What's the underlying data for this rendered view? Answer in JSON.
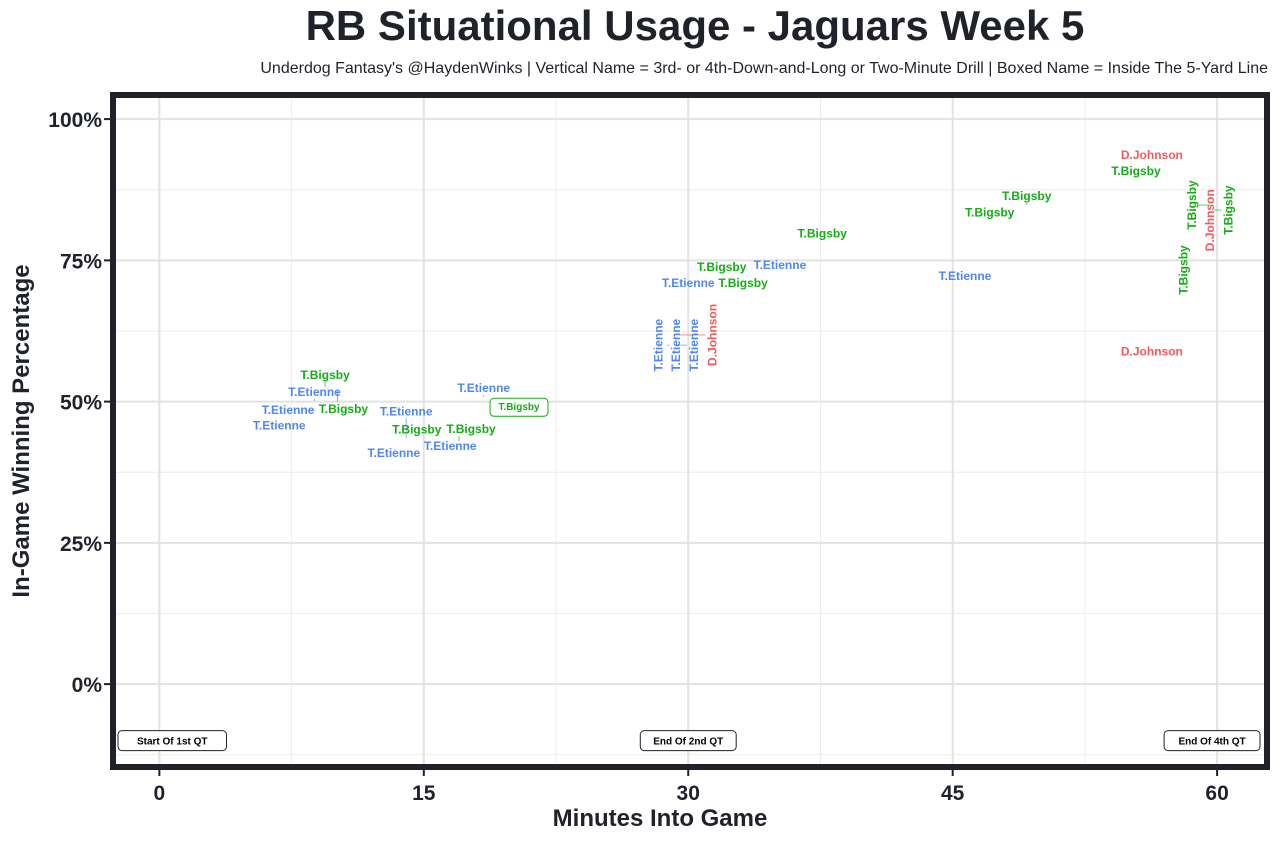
{
  "chart_data": {
    "type": "scatter",
    "title": "RB Situational Usage - Jaguars Week 5",
    "subtitle": "Underdog Fantasy's @HaydenWinks | Vertical Name = 3rd- or 4th-Down-and-Long or Two-Minute Drill | Boxed Name = Inside The 5-Yard Line",
    "xlabel": "Minutes Into Game",
    "ylabel": "In-Game Winning Percentage",
    "xlim": [
      -2.8,
      63
    ],
    "ylim": [
      -15.2,
      104.8
    ],
    "x_ticks": [
      0,
      15,
      30,
      45,
      60
    ],
    "x_tick_labels": [
      "0",
      "15",
      "30",
      "45",
      "60"
    ],
    "y_ticks": [
      0,
      25,
      50,
      75,
      100
    ],
    "y_tick_labels": [
      "0%",
      "25%",
      "50%",
      "75%",
      "100%"
    ],
    "grid": true,
    "colors": {
      "T.Etienne": "#4f86f7",
      "T.Bigsby": "#14ad14",
      "D.Johnson": "#f25a5a"
    },
    "points": [
      {
        "player": "T.Etienne",
        "x": 6.8,
        "y": 45.8,
        "vertical": false,
        "boxed": false
      },
      {
        "player": "T.Etienne",
        "x": 7.3,
        "y": 48.0,
        "vertical": false,
        "boxed": false
      },
      {
        "player": "T.Etienne",
        "x": 8.8,
        "y": 50.1,
        "vertical": false,
        "boxed": false
      },
      {
        "player": "T.Bigsby",
        "x": 9.4,
        "y": 52.6,
        "vertical": false,
        "boxed": false
      },
      {
        "player": "T.Bigsby",
        "x": 10.1,
        "y": 51.9,
        "vertical": false,
        "boxed": false
      },
      {
        "player": "T.Bigsby",
        "x": 14.6,
        "y": 45.1,
        "vertical": false,
        "boxed": false
      },
      {
        "player": "T.Etienne",
        "x": 13.3,
        "y": 40.9,
        "vertical": false,
        "boxed": false
      },
      {
        "player": "T.Etienne",
        "x": 14.0,
        "y": 43.5,
        "vertical": false,
        "boxed": false
      },
      {
        "player": "T.Etienne",
        "x": 16.5,
        "y": 42.7,
        "vertical": false,
        "boxed": false
      },
      {
        "player": "T.Bigsby",
        "x": 17.0,
        "y": 43.0,
        "vertical": false,
        "boxed": false
      },
      {
        "player": "T.Etienne",
        "x": 18.4,
        "y": 50.8,
        "vertical": false,
        "boxed": false
      },
      {
        "player": "T.Bigsby",
        "x": 20.4,
        "y": 49.0,
        "vertical": false,
        "boxed": true
      },
      {
        "player": "T.Etienne",
        "x": 28.3,
        "y": 60.0,
        "vertical": true,
        "boxed": false
      },
      {
        "player": "T.Etienne",
        "x": 28.8,
        "y": 60.0,
        "vertical": true,
        "boxed": false
      },
      {
        "player": "T.Etienne",
        "x": 29.3,
        "y": 60.0,
        "vertical": true,
        "boxed": false
      },
      {
        "player": "D.Johnson",
        "x": 29.5,
        "y": 61.8,
        "vertical": true,
        "boxed": false
      },
      {
        "player": "T.Etienne",
        "x": 30.0,
        "y": 71.0,
        "vertical": false,
        "boxed": false
      },
      {
        "player": "T.Bigsby",
        "x": 31.9,
        "y": 73.3,
        "vertical": false,
        "boxed": false
      },
      {
        "player": "T.Bigsby",
        "x": 32.6,
        "y": 71.5,
        "vertical": false,
        "boxed": false
      },
      {
        "player": "T.Etienne",
        "x": 35.2,
        "y": 74.2,
        "vertical": false,
        "boxed": false
      },
      {
        "player": "T.Bigsby",
        "x": 37.6,
        "y": 79.8,
        "vertical": false,
        "boxed": false
      },
      {
        "player": "T.Etienne",
        "x": 45.7,
        "y": 72.2,
        "vertical": false,
        "boxed": false
      },
      {
        "player": "T.Bigsby",
        "x": 47.1,
        "y": 83.5,
        "vertical": false,
        "boxed": false
      },
      {
        "player": "T.Bigsby",
        "x": 49.2,
        "y": 84.8,
        "vertical": false,
        "boxed": false
      },
      {
        "player": "T.Bigsby",
        "x": 55.4,
        "y": 90.8,
        "vertical": false,
        "boxed": false
      },
      {
        "player": "D.Johnson",
        "x": 56.3,
        "y": 93.1,
        "vertical": false,
        "boxed": false
      },
      {
        "player": "D.Johnson",
        "x": 56.3,
        "y": 58.9,
        "vertical": false,
        "boxed": false
      },
      {
        "player": "T.Bigsby",
        "x": 58.1,
        "y": 73.3,
        "vertical": true,
        "boxed": false
      },
      {
        "player": "D.Johnson",
        "x": 59.6,
        "y": 82.1,
        "vertical": true,
        "boxed": false
      },
      {
        "player": "T.Bigsby",
        "x": 59.6,
        "y": 84.8,
        "vertical": true,
        "boxed": false
      },
      {
        "player": "T.Bigsby",
        "x": 59.8,
        "y": 83.9,
        "vertical": true,
        "boxed": false
      }
    ],
    "annotations": [
      {
        "text": "Start Of 1st QT",
        "x": 0,
        "y": -10,
        "align": "left"
      },
      {
        "text": "End Of 2nd QT",
        "x": 30,
        "y": -10,
        "align": "center"
      },
      {
        "text": "End Of 4th QT",
        "x": 60,
        "y": -10,
        "align": "right"
      }
    ]
  }
}
